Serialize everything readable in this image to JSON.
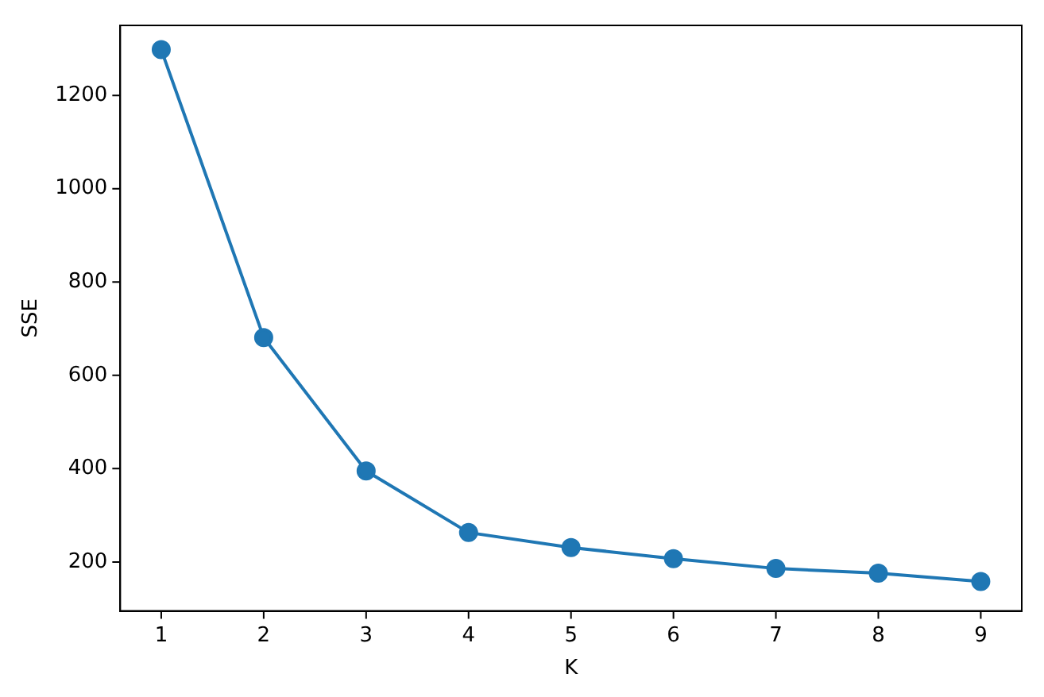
{
  "chart_data": {
    "type": "line",
    "xlabel": "K",
    "ylabel": "SSE",
    "x": [
      1,
      2,
      3,
      4,
      5,
      6,
      7,
      8,
      9
    ],
    "series": [
      {
        "color": "#1f77b4",
        "values": [
          1298,
          681,
          395,
          263,
          231,
          207,
          186,
          176,
          158
        ]
      }
    ],
    "xlim": [
      0.6,
      9.4
    ],
    "xticks": [
      1,
      2,
      3,
      4,
      5,
      6,
      7,
      8,
      9
    ],
    "ylim": [
      95,
      1350
    ],
    "yticks": [
      200,
      400,
      600,
      800,
      1000,
      1200
    ],
    "grid": false,
    "legend": false,
    "marker": "circle",
    "line_style": "solid"
  }
}
